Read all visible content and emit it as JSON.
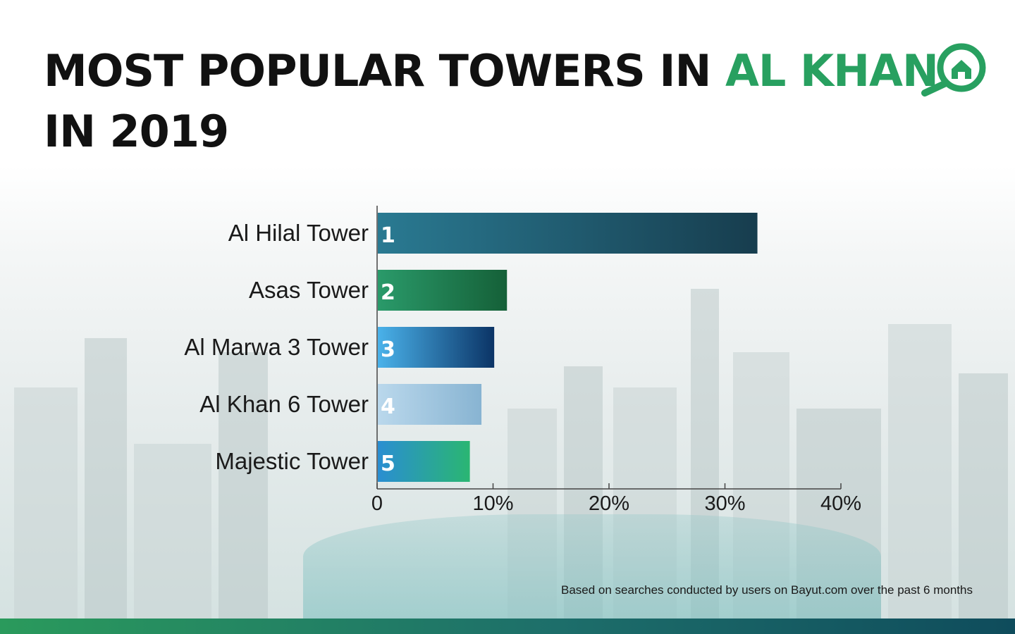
{
  "title": {
    "line1_prefix": "MOST POPULAR TOWERS IN ",
    "line1_accent": "AL KHAN",
    "line2": "IN 2019"
  },
  "logo": {
    "icon": "search-home-icon",
    "color": "#28a060"
  },
  "footnote": "Based on searches conducted by users on Bayut.com over the past 6 months",
  "colors": {
    "accent": "#28a060",
    "text": "#111111"
  },
  "chart_data": {
    "type": "bar",
    "orientation": "horizontal",
    "categories": [
      "Al Hilal Tower",
      "Asas Tower",
      "Al Marwa 3 Tower",
      "Al Khan 6 Tower",
      "Majestic Tower"
    ],
    "ranks": [
      "1",
      "2",
      "3",
      "4",
      "5"
    ],
    "values": [
      32.8,
      11.2,
      10.1,
      9.0,
      8.0
    ],
    "value_unit": "%",
    "xlim": [
      0,
      40
    ],
    "xticks": [
      "0",
      "10%",
      "20%",
      "30%",
      "40%"
    ],
    "grid": false,
    "bar_colors": [
      [
        "#2a7a92",
        "#173d4e"
      ],
      [
        "#2a9a6a",
        "#156038"
      ],
      [
        "#4ab2ea",
        "#0b3466"
      ],
      [
        "#bad8ec",
        "#88b4d2"
      ],
      [
        "#2a8ed2",
        "#2ab672"
      ]
    ]
  }
}
